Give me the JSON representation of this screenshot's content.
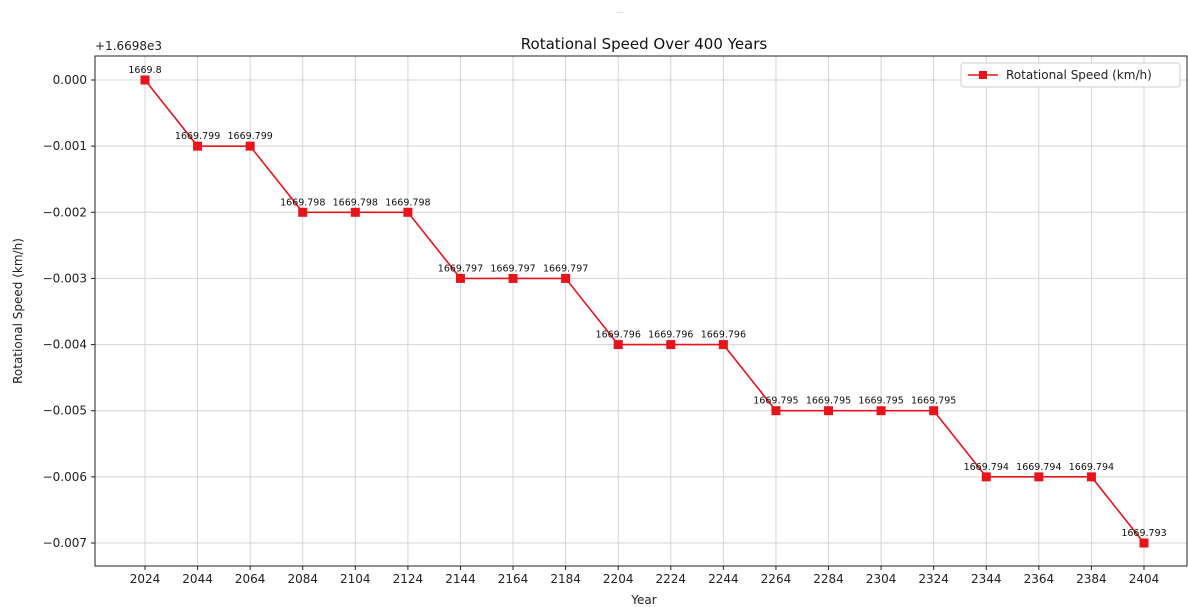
{
  "top_mark": "...",
  "chart_data": {
    "type": "line",
    "title": "Rotational Speed Over 400 Years",
    "xlabel": "Year",
    "ylabel": "Rotational Speed (km/h)",
    "y_offset_label": "+1.6698e3",
    "y_offset": 1669.8,
    "ylim": [
      -0.00735,
      0.00035
    ],
    "y_ticks": [
      0.0,
      -0.001,
      -0.002,
      -0.003,
      -0.004,
      -0.005,
      -0.006,
      -0.007
    ],
    "y_tick_labels": [
      "0.000",
      "−0.001",
      "−0.002",
      "−0.003",
      "−0.004",
      "−0.005",
      "−0.006",
      "−0.007"
    ],
    "x_ticks": [
      2024,
      2044,
      2064,
      2084,
      2104,
      2124,
      2144,
      2164,
      2184,
      2204,
      2224,
      2244,
      2264,
      2284,
      2304,
      2324,
      2344,
      2364,
      2384,
      2404
    ],
    "x_tick_labels": [
      "2024",
      "2044",
      "2064",
      "2084",
      "2104",
      "2124",
      "2144",
      "2164",
      "2184",
      "2204",
      "2224",
      "2244",
      "2264",
      "2284",
      "2304",
      "2324",
      "2344",
      "2364",
      "2384",
      "2404"
    ],
    "grid": true,
    "legend_position": "top-right",
    "series": [
      {
        "name": "Rotational Speed (km/h)",
        "color": "#e8141b",
        "marker": "square",
        "x": [
          2024,
          2044,
          2064,
          2084,
          2104,
          2124,
          2144,
          2164,
          2184,
          2204,
          2224,
          2244,
          2264,
          2284,
          2304,
          2324,
          2344,
          2364,
          2384,
          2404
        ],
        "y": [
          1669.8,
          1669.799,
          1669.799,
          1669.798,
          1669.798,
          1669.798,
          1669.797,
          1669.797,
          1669.797,
          1669.796,
          1669.796,
          1669.796,
          1669.795,
          1669.795,
          1669.795,
          1669.795,
          1669.794,
          1669.794,
          1669.794,
          1669.793
        ],
        "labels": [
          "1669.8",
          "1669.799",
          "1669.799",
          "1669.798",
          "1669.798",
          "1669.798",
          "1669.797",
          "1669.797",
          "1669.797",
          "1669.796",
          "1669.796",
          "1669.796",
          "1669.795",
          "1669.795",
          "1669.795",
          "1669.795",
          "1669.794",
          "1669.794",
          "1669.794",
          "1669.793"
        ]
      }
    ]
  }
}
